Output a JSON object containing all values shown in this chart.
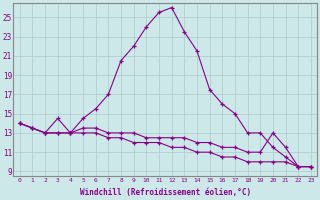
{
  "xlabel": "Windchill (Refroidissement éolien,°C)",
  "background_color": "#cce8e8",
  "line_color": "#880088",
  "grid_color": "#aacccc",
  "xlim": [
    -0.5,
    23.5
  ],
  "ylim": [
    8.5,
    26.5
  ],
  "yticks": [
    9,
    11,
    13,
    15,
    17,
    19,
    21,
    23,
    25
  ],
  "xticks": [
    0,
    1,
    2,
    3,
    4,
    5,
    6,
    7,
    8,
    9,
    10,
    11,
    12,
    13,
    14,
    15,
    16,
    17,
    18,
    19,
    20,
    21,
    22,
    23
  ],
  "line1_x": [
    0,
    1,
    2,
    3,
    4,
    5,
    6,
    7,
    8,
    9,
    10,
    11,
    12,
    13,
    14,
    15,
    16,
    17,
    18,
    19,
    20,
    21,
    22,
    23
  ],
  "line1_y": [
    14.0,
    13.5,
    13.0,
    14.5,
    13.0,
    14.5,
    15.5,
    17.0,
    20.5,
    22.0,
    24.0,
    25.5,
    26.0,
    23.5,
    21.5,
    17.5,
    16.0,
    15.0,
    13.0,
    13.0,
    11.5,
    10.5,
    9.5,
    9.5
  ],
  "line2_x": [
    0,
    1,
    2,
    3,
    4,
    5,
    6,
    7,
    8,
    9,
    10,
    11,
    12,
    13,
    14,
    15,
    16,
    17,
    18,
    19,
    20,
    21,
    22,
    23
  ],
  "line2_y": [
    14.0,
    13.5,
    13.0,
    13.0,
    13.0,
    13.5,
    13.5,
    13.0,
    13.0,
    13.0,
    12.5,
    12.5,
    12.5,
    12.5,
    12.0,
    12.0,
    11.5,
    11.5,
    11.0,
    11.0,
    13.0,
    11.5,
    9.5,
    9.5
  ],
  "line3_x": [
    0,
    1,
    2,
    3,
    4,
    5,
    6,
    7,
    8,
    9,
    10,
    11,
    12,
    13,
    14,
    15,
    16,
    17,
    18,
    19,
    20,
    21,
    22,
    23
  ],
  "line3_y": [
    14.0,
    13.5,
    13.0,
    13.0,
    13.0,
    13.0,
    13.0,
    12.5,
    12.5,
    12.0,
    12.0,
    12.0,
    11.5,
    11.5,
    11.0,
    11.0,
    10.5,
    10.5,
    10.0,
    10.0,
    10.0,
    10.0,
    9.5,
    9.5
  ]
}
